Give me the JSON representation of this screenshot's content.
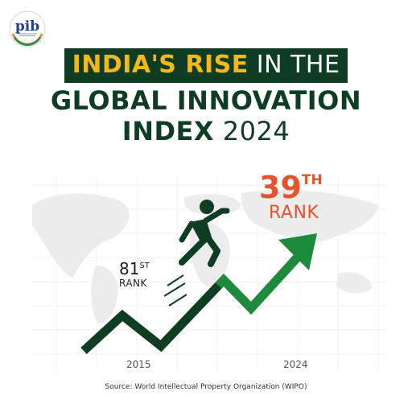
{
  "title": {
    "line1_highlight": "INDIA'S RISE",
    "line1_rest": "IN THE",
    "line2": "GLOBAL INNOVATION",
    "line3_bold": "INDEX",
    "line3_year": "2024"
  },
  "start": {
    "number": "81",
    "suffix": "ST",
    "label": "RANK",
    "year": "2015"
  },
  "end": {
    "number": "39",
    "suffix": "TH",
    "label": "RANK",
    "year": "2024"
  },
  "source": "Source: World Intellectual Property Organization (WIPO)",
  "colors": {
    "dark_green": "#0f3d24",
    "green": "#1e8a3c",
    "accent_orange": "#e8532b",
    "accent_yellow": "#f5b81c"
  },
  "icons": [
    "pib-logo-icon",
    "running-person-icon",
    "rising-arrow-icon",
    "world-map-icon"
  ]
}
